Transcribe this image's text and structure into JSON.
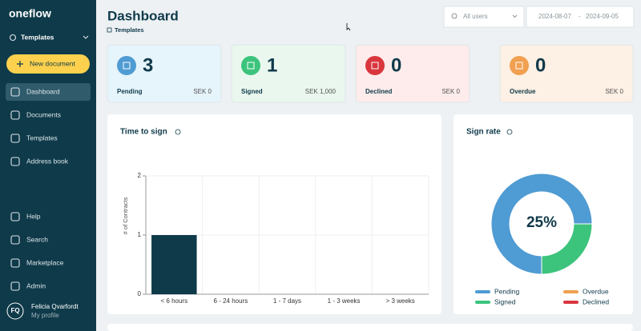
{
  "sidebar": {
    "logo": "oneflow",
    "workspace": "Templates",
    "new_document": "New document",
    "nav": [
      "Dashboard",
      "Documents",
      "Templates",
      "Address book"
    ],
    "bottom_nav": [
      "Help",
      "Search",
      "Marketplace",
      "Admin"
    ],
    "user": {
      "initials": "FQ",
      "name": "Felicia Qvarfordt",
      "link": "My profile"
    }
  },
  "header": {
    "title": "Dashboard",
    "breadcrumb": "Templates",
    "user_filter": "All users",
    "date_from": "2024-08-07",
    "date_separator": "-",
    "date_to": "2024-09-05"
  },
  "cards": [
    {
      "label": "Pending",
      "count": 3,
      "amount": "SEK 0"
    },
    {
      "label": "Signed",
      "count": 1,
      "amount": "SEK 1,000"
    },
    {
      "label": "Declined",
      "count": 0,
      "amount": "SEK 0"
    },
    {
      "label": "Overdue",
      "count": 0,
      "amount": "SEK 0"
    }
  ],
  "chart_data": [
    {
      "type": "bar",
      "title": "Time to sign",
      "ylabel": "# of Contracts",
      "categories": [
        "< 6 hours",
        "6 - 24 hours",
        "1 - 7 days",
        "1 - 3 weeks",
        "> 3 weeks"
      ],
      "values": [
        1,
        0,
        0,
        0,
        0
      ],
      "color": "#0f3a4a",
      "ylim": [
        0,
        2
      ],
      "yticks": [
        0,
        1,
        2
      ],
      "grid": true
    },
    {
      "type": "pie",
      "title": "Sign rate",
      "center_label": "25%",
      "categories": [
        "Pending",
        "Signed",
        "Overdue",
        "Declined"
      ],
      "values": [
        75,
        25,
        0,
        0
      ],
      "colors": [
        "#4f9bd3",
        "#3cc47c",
        "#f0a050",
        "#d9363e"
      ]
    }
  ]
}
